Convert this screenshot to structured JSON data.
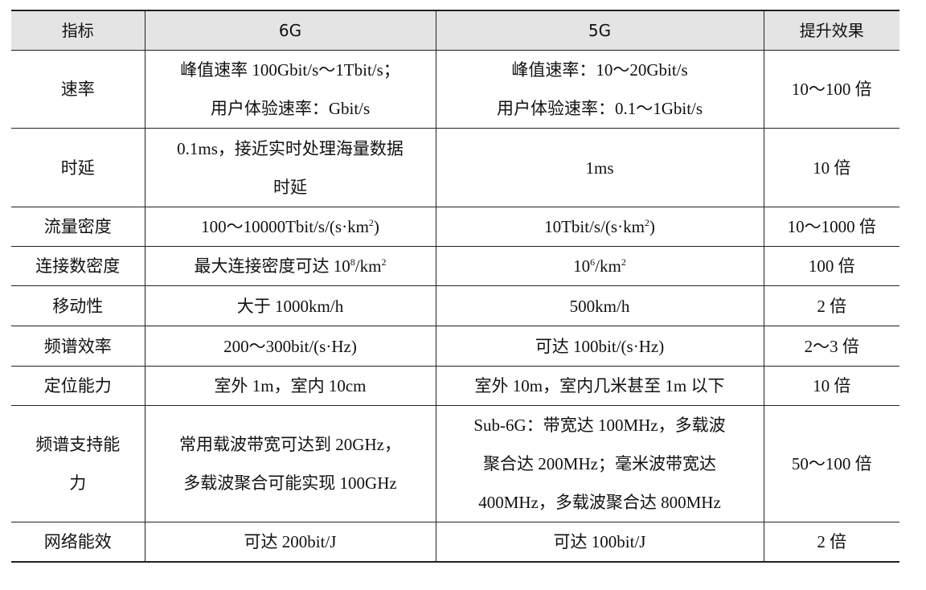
{
  "table": {
    "headers": [
      "指标",
      "6G",
      "5G",
      "提升效果"
    ],
    "rows": [
      {
        "cells": [
          [
            [
              {
                "t": "速率"
              }
            ]
          ],
          [
            [
              {
                "t": "峰值速率 100Gbit/s～1Tbit/s；"
              }
            ],
            [
              {
                "t": "用户体验速率：Gbit/s"
              }
            ]
          ],
          [
            [
              {
                "t": "峰值速率：10～20Gbit/s"
              }
            ],
            [
              {
                "t": "用户体验速率：0.1～1Gbit/s"
              }
            ]
          ],
          [
            [
              {
                "t": "10～100 倍"
              }
            ]
          ]
        ]
      },
      {
        "cells": [
          [
            [
              {
                "t": "时延"
              }
            ]
          ],
          [
            [
              {
                "t": "0.1ms，接近实时处理海量数据"
              }
            ],
            [
              {
                "t": "时延"
              }
            ]
          ],
          [
            [
              {
                "t": "1ms"
              }
            ]
          ],
          [
            [
              {
                "t": "10 倍"
              }
            ]
          ]
        ]
      },
      {
        "cells": [
          [
            [
              {
                "t": "流量密度"
              }
            ]
          ],
          [
            [
              {
                "t": "100～10000Tbit/s/(s·km"
              },
              {
                "sup": "2"
              },
              {
                "t": ")"
              }
            ]
          ],
          [
            [
              {
                "t": "10Tbit/s/(s·km"
              },
              {
                "sup": "2"
              },
              {
                "t": ")"
              }
            ]
          ],
          [
            [
              {
                "t": "10～1000 倍"
              }
            ]
          ]
        ]
      },
      {
        "cells": [
          [
            [
              {
                "t": "连接数密度"
              }
            ]
          ],
          [
            [
              {
                "t": "最大连接密度可达 10"
              },
              {
                "sup": "8"
              },
              {
                "t": "/km"
              },
              {
                "sup": "2"
              }
            ]
          ],
          [
            [
              {
                "t": "10"
              },
              {
                "sup": "6"
              },
              {
                "t": "/km"
              },
              {
                "sup": "2"
              }
            ]
          ],
          [
            [
              {
                "t": "100 倍"
              }
            ]
          ]
        ]
      },
      {
        "cells": [
          [
            [
              {
                "t": "移动性"
              }
            ]
          ],
          [
            [
              {
                "t": "大于 1000km/h"
              }
            ]
          ],
          [
            [
              {
                "t": "500km/h"
              }
            ]
          ],
          [
            [
              {
                "t": "2 倍"
              }
            ]
          ]
        ]
      },
      {
        "cells": [
          [
            [
              {
                "t": "频谱效率"
              }
            ]
          ],
          [
            [
              {
                "t": "200～300bit/(s·Hz)"
              }
            ]
          ],
          [
            [
              {
                "t": "可达 100bit/(s·Hz)"
              }
            ]
          ],
          [
            [
              {
                "t": "2～3 倍"
              }
            ]
          ]
        ]
      },
      {
        "cells": [
          [
            [
              {
                "t": "定位能力"
              }
            ]
          ],
          [
            [
              {
                "t": "室外 1m，室内 10cm"
              }
            ]
          ],
          [
            [
              {
                "t": "室外 10m，室内几米甚至 1m 以下"
              }
            ]
          ],
          [
            [
              {
                "t": "10 倍"
              }
            ]
          ]
        ]
      },
      {
        "cells": [
          [
            [
              {
                "t": "频谱支持能"
              }
            ],
            [
              {
                "t": "力"
              }
            ]
          ],
          [
            [
              {
                "t": "常用载波带宽可达到 20GHz，"
              }
            ],
            [
              {
                "t": "多载波聚合可能实现 100GHz"
              }
            ]
          ],
          [
            [
              {
                "t": "Sub-6G：带宽达 100MHz，多载波"
              }
            ],
            [
              {
                "t": "聚合达 200MHz；毫米波带宽达"
              }
            ],
            [
              {
                "t": "400MHz，多载波聚合达 800MHz"
              }
            ]
          ],
          [
            [
              {
                "t": "50～100 倍"
              }
            ]
          ]
        ]
      },
      {
        "cells": [
          [
            [
              {
                "t": "网络能效"
              }
            ]
          ],
          [
            [
              {
                "t": "可达 200bit/J"
              }
            ]
          ],
          [
            [
              {
                "t": "可达 100bit/J"
              }
            ]
          ],
          [
            [
              {
                "t": "2 倍"
              }
            ]
          ]
        ]
      }
    ]
  }
}
